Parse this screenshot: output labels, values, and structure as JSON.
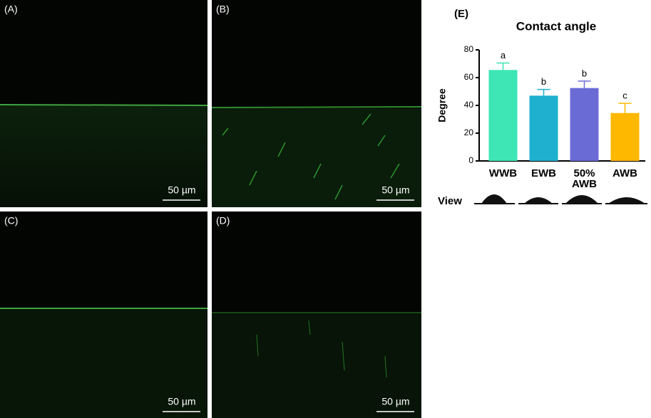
{
  "panels": [
    {
      "label": "(A)",
      "scale": "50 µm"
    },
    {
      "label": "(B)",
      "scale": "50 µm"
    },
    {
      "label": "(C)",
      "scale": "50 µm"
    },
    {
      "label": "(D)",
      "scale": "50 µm"
    }
  ],
  "chart_data": {
    "type": "bar",
    "panel_label": "(E)",
    "title": "Contact angle",
    "y_label": "Degree",
    "categories": [
      "WWB",
      "EWB",
      "50% AWB",
      "AWB"
    ],
    "values": [
      65.5,
      47,
      52.5,
      34.5
    ],
    "errors": [
      5,
      4.5,
      5,
      7
    ],
    "annotations": [
      "a",
      "b",
      "b",
      "c"
    ],
    "colors": [
      "#3de6b4",
      "#1fb0d0",
      "#6b6bd6",
      "#ffb800"
    ],
    "ylim": [
      0,
      80
    ],
    "yticks": [
      0,
      20,
      40,
      60,
      80
    ],
    "view_label": "View"
  }
}
